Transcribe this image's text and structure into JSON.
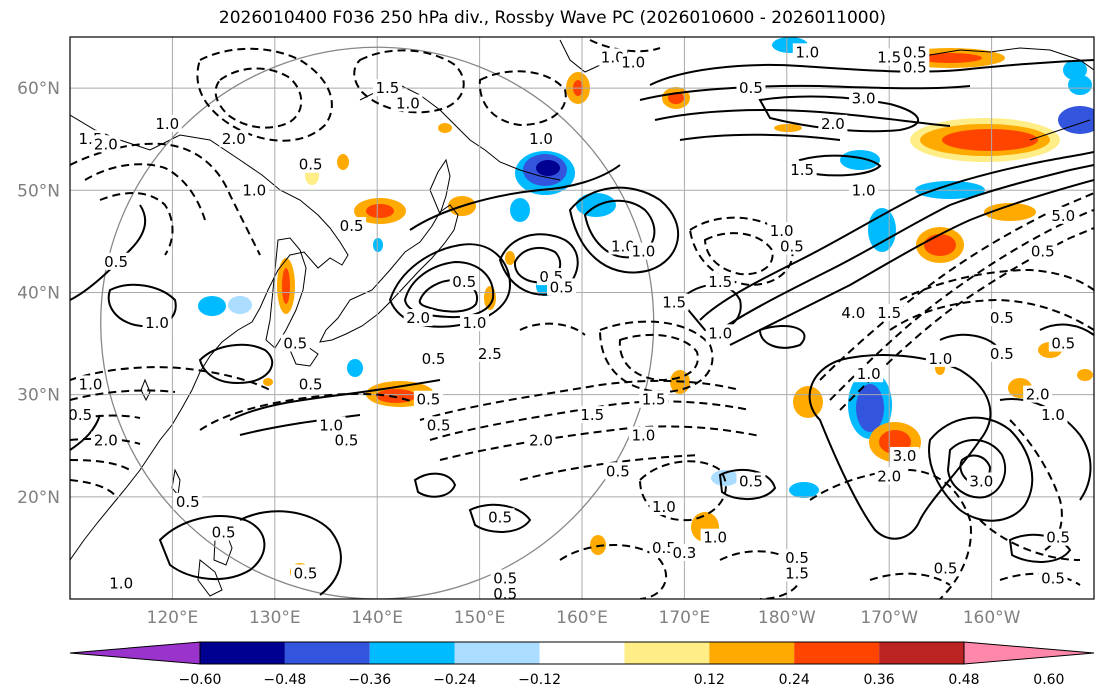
{
  "title": "2026010400 F036 250 hPa div., Rossby Wave PC (2026010600 - 2026011000)",
  "map": {
    "lat_range": [
      10,
      65
    ],
    "lon_range_east": [
      110,
      210
    ],
    "lat_ticks": [
      {
        "value": 20,
        "label": "20°N"
      },
      {
        "value": 30,
        "label": "30°N"
      },
      {
        "value": 40,
        "label": "40°N"
      },
      {
        "value": 50,
        "label": "50°N"
      },
      {
        "value": 60,
        "label": "60°N"
      }
    ],
    "lon_ticks": [
      {
        "value": 120,
        "label": "120°E"
      },
      {
        "value": 130,
        "label": "130°E"
      },
      {
        "value": 140,
        "label": "140°E"
      },
      {
        "value": 150,
        "label": "150°E"
      },
      {
        "value": 160,
        "label": "160°E"
      },
      {
        "value": 170,
        "label": "170°E"
      },
      {
        "value": 180,
        "label": "180°W"
      },
      {
        "value": 190,
        "label": "170°W"
      },
      {
        "value": 200,
        "label": "160°W"
      }
    ],
    "grid": true,
    "range_circle": {
      "center_lon": 140,
      "center_lat": 37,
      "radius_deg": 27
    }
  },
  "colorbar": {
    "ticks": [
      "−0.60",
      "−0.48",
      "−0.36",
      "−0.24",
      "−0.12",
      "0.12",
      "0.24",
      "0.36",
      "0.48",
      "0.60"
    ],
    "colors": [
      "#9933cc",
      "#000090",
      "#3355dd",
      "#00bbff",
      "#aaddff",
      "#ffffff",
      "#ffee88",
      "#ffaa00",
      "#ff4400",
      "#bb2222",
      "#ff88aa"
    ],
    "extend": "both"
  },
  "contour_labels": [
    {
      "text": "1.0",
      "lon": 163.0,
      "lat": 63.0
    },
    {
      "text": "1.0",
      "lon": 165.0,
      "lat": 62.5
    },
    {
      "text": "1.0",
      "lon": 182.0,
      "lat": 63.5
    },
    {
      "text": "1.5",
      "lon": 190.0,
      "lat": 63.0
    },
    {
      "text": "0.5",
      "lon": 192.5,
      "lat": 63.5
    },
    {
      "text": "0.5",
      "lon": 192.5,
      "lat": 62.0
    },
    {
      "text": "0.5",
      "lon": 176.5,
      "lat": 60.0
    },
    {
      "text": "2.0",
      "lon": 184.5,
      "lat": 56.5
    },
    {
      "text": "3.0",
      "lon": 187.5,
      "lat": 59.0
    },
    {
      "text": "1.5",
      "lon": 181.5,
      "lat": 52.0
    },
    {
      "text": "1.0",
      "lon": 187.5,
      "lat": 50.0
    },
    {
      "text": "1.5",
      "lon": 141.0,
      "lat": 60.0
    },
    {
      "text": "1.0",
      "lon": 143.0,
      "lat": 58.5
    },
    {
      "text": "1.0",
      "lon": 156.0,
      "lat": 55.0
    },
    {
      "text": "1.0",
      "lon": 119.5,
      "lat": 56.5
    },
    {
      "text": "1.5",
      "lon": 112.0,
      "lat": 55.0
    },
    {
      "text": "2.0",
      "lon": 113.5,
      "lat": 54.5
    },
    {
      "text": "2.0",
      "lon": 126.0,
      "lat": 55.0
    },
    {
      "text": "0.5",
      "lon": 133.5,
      "lat": 52.5
    },
    {
      "text": "1.0",
      "lon": 128.0,
      "lat": 50.0
    },
    {
      "text": "0.5",
      "lon": 137.5,
      "lat": 46.5
    },
    {
      "text": "0.5",
      "lon": 114.5,
      "lat": 43.0
    },
    {
      "text": "1.0",
      "lon": 118.5,
      "lat": 37.0
    },
    {
      "text": "0.5",
      "lon": 132.0,
      "lat": 35.0
    },
    {
      "text": "0.5",
      "lon": 148.5,
      "lat": 41.0
    },
    {
      "text": "0.5",
      "lon": 157.0,
      "lat": 41.5
    },
    {
      "text": "2.0",
      "lon": 144.0,
      "lat": 37.5
    },
    {
      "text": "1.0",
      "lon": 149.5,
      "lat": 37.0
    },
    {
      "text": "0.5",
      "lon": 145.5,
      "lat": 33.5
    },
    {
      "text": "2.5",
      "lon": 151.0,
      "lat": 34.0
    },
    {
      "text": "1.0",
      "lon": 164.0,
      "lat": 44.5
    },
    {
      "text": "1.5",
      "lon": 169.0,
      "lat": 39.0
    },
    {
      "text": "1.0",
      "lon": 173.5,
      "lat": 36.0
    },
    {
      "text": "1.5",
      "lon": 173.5,
      "lat": 41.0
    },
    {
      "text": "4.0",
      "lon": 186.5,
      "lat": 38.0
    },
    {
      "text": "0.5",
      "lon": 180.5,
      "lat": 44.5
    },
    {
      "text": "1.0",
      "lon": 179.5,
      "lat": 46.0
    },
    {
      "text": "0.5",
      "lon": 201.0,
      "lat": 37.5
    },
    {
      "text": "1.0",
      "lon": 195.0,
      "lat": 33.5
    },
    {
      "text": "1.5",
      "lon": 190.0,
      "lat": 38.0
    },
    {
      "text": "0.5",
      "lon": 207.0,
      "lat": 35.0
    },
    {
      "text": "1.5",
      "lon": 167.0,
      "lat": 29.5
    },
    {
      "text": "1.5",
      "lon": 161.0,
      "lat": 28.0
    },
    {
      "text": "1.0",
      "lon": 166.0,
      "lat": 26.0
    },
    {
      "text": "2.0",
      "lon": 156.0,
      "lat": 25.5
    },
    {
      "text": "0.5",
      "lon": 163.5,
      "lat": 22.5
    },
    {
      "text": "0.5",
      "lon": 176.5,
      "lat": 21.5
    },
    {
      "text": "1.0",
      "lon": 188.0,
      "lat": 32.0
    },
    {
      "text": "2.0",
      "lon": 190.0,
      "lat": 22.0
    },
    {
      "text": "3.0",
      "lon": 191.5,
      "lat": 24.0
    },
    {
      "text": "3.0",
      "lon": 199.0,
      "lat": 21.5
    },
    {
      "text": "0.5",
      "lon": 206.5,
      "lat": 16.0
    },
    {
      "text": "0.5",
      "lon": 195.5,
      "lat": 13.0
    },
    {
      "text": "0.5",
      "lon": 206.0,
      "lat": 12.0
    },
    {
      "text": "0.5",
      "lon": 181.0,
      "lat": 14.0
    },
    {
      "text": "1.5",
      "lon": 181.0,
      "lat": 12.5
    },
    {
      "text": "1.0",
      "lon": 173.0,
      "lat": 16.0
    },
    {
      "text": "0.5",
      "lon": 168.0,
      "lat": 15.0
    },
    {
      "text": "0.3",
      "lon": 170.0,
      "lat": 14.5
    },
    {
      "text": "1.0",
      "lon": 168.0,
      "lat": 19.0
    },
    {
      "text": "0.5",
      "lon": 152.0,
      "lat": 18.0
    },
    {
      "text": "0.5",
      "lon": 133.5,
      "lat": 31.0
    },
    {
      "text": "1.0",
      "lon": 135.5,
      "lat": 27.0
    },
    {
      "text": "0.5",
      "lon": 137.0,
      "lat": 25.5
    },
    {
      "text": "0.5",
      "lon": 145.0,
      "lat": 29.5
    },
    {
      "text": "0.5",
      "lon": 146.0,
      "lat": 27.0
    },
    {
      "text": "1.0",
      "lon": 112.0,
      "lat": 31.0
    },
    {
      "text": "0.5",
      "lon": 111.0,
      "lat": 28.0
    },
    {
      "text": "2.0",
      "lon": 113.5,
      "lat": 25.5
    },
    {
      "text": "0.5",
      "lon": 121.5,
      "lat": 19.5
    },
    {
      "text": "0.5",
      "lon": 125.0,
      "lat": 16.5
    },
    {
      "text": "1.0",
      "lon": 115.0,
      "lat": 11.5
    },
    {
      "text": "0.5",
      "lon": 133.0,
      "lat": 12.5
    },
    {
      "text": "0.5",
      "lon": 152.5,
      "lat": 12.0
    },
    {
      "text": "0.5",
      "lon": 152.5,
      "lat": 10.5
    },
    {
      "text": "1.0",
      "lon": 166.0,
      "lat": 44.0
    },
    {
      "text": "0.5",
      "lon": 158.0,
      "lat": 40.5
    },
    {
      "text": "0.5",
      "lon": 201.0,
      "lat": 34.0
    },
    {
      "text": "5.0",
      "lon": 207.0,
      "lat": 47.5
    },
    {
      "text": "0.5",
      "lon": 205.0,
      "lat": 44.0
    },
    {
      "text": "1.0",
      "lon": 206.0,
      "lat": 28.0
    },
    {
      "text": "2.0",
      "lon": 204.5,
      "lat": 30.0
    }
  ]
}
